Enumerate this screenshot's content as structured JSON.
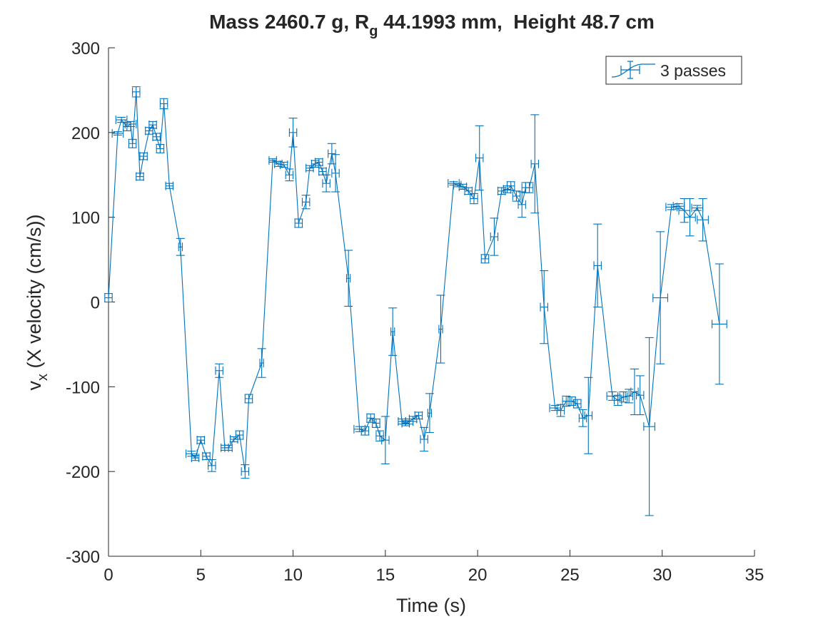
{
  "chart_data": {
    "type": "line",
    "title": "Mass 2460.7 g, R",
    "title_sub": "g",
    "title_rest": " 44.1993 mm,  Height 48.7 cm",
    "xlabel": "Time (s)",
    "ylabel": "v",
    "ylabel_sub": "x",
    "ylabel_rest": " (X velocity (cm/s))",
    "xlim": [
      0,
      35
    ],
    "ylim": [
      -300,
      300
    ],
    "xticks": [
      0,
      5,
      10,
      15,
      20,
      25,
      30,
      35
    ],
    "xtick_labels": [
      "0",
      "5",
      "10",
      "15",
      "20",
      "25",
      "30",
      "35"
    ],
    "yticks": [
      -300,
      -200,
      -100,
      0,
      100,
      200,
      300
    ],
    "ytick_labels": [
      "-300",
      "-200",
      "-100",
      "0",
      "100",
      "200",
      "300"
    ],
    "grid": false,
    "legend": {
      "position": "top-right",
      "entries": [
        "3 passes"
      ]
    },
    "series": [
      {
        "name": "3 passes",
        "color": "#0072BD",
        "points": [
          {
            "x": 0.0,
            "y": 5,
            "yerr": 5,
            "xerr": 0.2
          },
          {
            "x": 0.5,
            "y": 199,
            "yerr": 2,
            "xerr": 0.3
          },
          {
            "x": 0.7,
            "y": 215,
            "yerr": 3,
            "xerr": 0.3
          },
          {
            "x": 1.0,
            "y": 207,
            "yerr": 5,
            "xerr": 0.2
          },
          {
            "x": 1.2,
            "y": 210,
            "yerr": 3,
            "xerr": 0.3
          },
          {
            "x": 1.3,
            "y": 187,
            "yerr": 5,
            "xerr": 0.2
          },
          {
            "x": 1.5,
            "y": 248,
            "yerr": 6,
            "xerr": 0.2
          },
          {
            "x": 1.7,
            "y": 148,
            "yerr": 4,
            "xerr": 0.2
          },
          {
            "x": 1.9,
            "y": 172,
            "yerr": 4,
            "xerr": 0.2
          },
          {
            "x": 2.2,
            "y": 202,
            "yerr": 4,
            "xerr": 0.2
          },
          {
            "x": 2.4,
            "y": 209,
            "yerr": 4,
            "xerr": 0.2
          },
          {
            "x": 2.6,
            "y": 195,
            "yerr": 4,
            "xerr": 0.2
          },
          {
            "x": 2.8,
            "y": 181,
            "yerr": 5,
            "xerr": 0.2
          },
          {
            "x": 3.0,
            "y": 234,
            "yerr": 6,
            "xerr": 0.2
          },
          {
            "x": 3.3,
            "y": 137,
            "yerr": 3,
            "xerr": 0.2
          },
          {
            "x": 3.9,
            "y": 65,
            "yerr": 10,
            "xerr": 0.1
          },
          {
            "x": 4.5,
            "y": -179,
            "yerr": 3,
            "xerr": 0.3
          },
          {
            "x": 4.7,
            "y": -184,
            "yerr": 3,
            "xerr": 0.2
          },
          {
            "x": 5.0,
            "y": -163,
            "yerr": 4,
            "xerr": 0.2
          },
          {
            "x": 5.3,
            "y": -182,
            "yerr": 4,
            "xerr": 0.2
          },
          {
            "x": 5.6,
            "y": -193,
            "yerr": 7,
            "xerr": 0.2
          },
          {
            "x": 6.0,
            "y": -81,
            "yerr": 8,
            "xerr": 0.2
          },
          {
            "x": 6.3,
            "y": -172,
            "yerr": 3,
            "xerr": 0.2
          },
          {
            "x": 6.5,
            "y": -172,
            "yerr": 3,
            "xerr": 0.2
          },
          {
            "x": 6.8,
            "y": -162,
            "yerr": 3,
            "xerr": 0.2
          },
          {
            "x": 7.1,
            "y": -157,
            "yerr": 5,
            "xerr": 0.2
          },
          {
            "x": 7.4,
            "y": -200,
            "yerr": 8,
            "xerr": 0.2
          },
          {
            "x": 7.6,
            "y": -114,
            "yerr": 5,
            "xerr": 0.2
          },
          {
            "x": 8.3,
            "y": -72,
            "yerr": 17,
            "xerr": 0.1
          },
          {
            "x": 8.9,
            "y": 167,
            "yerr": 2,
            "xerr": 0.2
          },
          {
            "x": 9.2,
            "y": 163,
            "yerr": 3,
            "xerr": 0.2
          },
          {
            "x": 9.5,
            "y": 162,
            "yerr": 3,
            "xerr": 0.2
          },
          {
            "x": 9.8,
            "y": 150,
            "yerr": 7,
            "xerr": 0.2
          },
          {
            "x": 10.0,
            "y": 200,
            "yerr": 17,
            "xerr": 0.2
          },
          {
            "x": 10.3,
            "y": 93,
            "yerr": 5,
            "xerr": 0.2
          },
          {
            "x": 10.7,
            "y": 118,
            "yerr": 8,
            "xerr": 0.2
          },
          {
            "x": 10.9,
            "y": 158,
            "yerr": 3,
            "xerr": 0.2
          },
          {
            "x": 11.2,
            "y": 163,
            "yerr": 4,
            "xerr": 0.2
          },
          {
            "x": 11.4,
            "y": 165,
            "yerr": 4,
            "xerr": 0.2
          },
          {
            "x": 11.6,
            "y": 154,
            "yerr": 4,
            "xerr": 0.2
          },
          {
            "x": 11.8,
            "y": 140,
            "yerr": 10,
            "xerr": 0.2
          },
          {
            "x": 12.1,
            "y": 175,
            "yerr": 12,
            "xerr": 0.2
          },
          {
            "x": 12.3,
            "y": 152,
            "yerr": 22,
            "xerr": 0.2
          },
          {
            "x": 13.0,
            "y": 28,
            "yerr": 33,
            "xerr": 0.1
          },
          {
            "x": 13.6,
            "y": -150,
            "yerr": 3,
            "xerr": 0.3
          },
          {
            "x": 13.9,
            "y": -152,
            "yerr": 5,
            "xerr": 0.2
          },
          {
            "x": 14.2,
            "y": -137,
            "yerr": 5,
            "xerr": 0.2
          },
          {
            "x": 14.5,
            "y": -143,
            "yerr": 5,
            "xerr": 0.2
          },
          {
            "x": 14.7,
            "y": -158,
            "yerr": 6,
            "xerr": 0.2
          },
          {
            "x": 15.0,
            "y": -163,
            "yerr": 28,
            "xerr": 0.2
          },
          {
            "x": 15.4,
            "y": -35,
            "yerr": 28,
            "xerr": 0.1
          },
          {
            "x": 15.9,
            "y": -141,
            "yerr": 3,
            "xerr": 0.2
          },
          {
            "x": 16.1,
            "y": -143,
            "yerr": 3,
            "xerr": 0.2
          },
          {
            "x": 16.3,
            "y": -141,
            "yerr": 3,
            "xerr": 0.2
          },
          {
            "x": 16.5,
            "y": -138,
            "yerr": 3,
            "xerr": 0.2
          },
          {
            "x": 16.8,
            "y": -134,
            "yerr": 4,
            "xerr": 0.2
          },
          {
            "x": 17.1,
            "y": -162,
            "yerr": 14,
            "xerr": 0.2
          },
          {
            "x": 17.4,
            "y": -131,
            "yerr": 23,
            "xerr": 0.1
          },
          {
            "x": 18.0,
            "y": -32,
            "yerr": 40,
            "xerr": 0.1
          },
          {
            "x": 18.7,
            "y": 140,
            "yerr": 2,
            "xerr": 0.3
          },
          {
            "x": 18.9,
            "y": 138,
            "yerr": 2,
            "xerr": 0.2
          },
          {
            "x": 19.2,
            "y": 136,
            "yerr": 3,
            "xerr": 0.2
          },
          {
            "x": 19.5,
            "y": 131,
            "yerr": 4,
            "xerr": 0.2
          },
          {
            "x": 19.8,
            "y": 122,
            "yerr": 6,
            "xerr": 0.2
          },
          {
            "x": 20.1,
            "y": 170,
            "yerr": 38,
            "xerr": 0.2
          },
          {
            "x": 20.4,
            "y": 51,
            "yerr": 5,
            "xerr": 0.2
          },
          {
            "x": 20.9,
            "y": 77,
            "yerr": 22,
            "xerr": 0.2
          },
          {
            "x": 21.3,
            "y": 131,
            "yerr": 4,
            "xerr": 0.2
          },
          {
            "x": 21.6,
            "y": 133,
            "yerr": 4,
            "xerr": 0.2
          },
          {
            "x": 21.8,
            "y": 137,
            "yerr": 5,
            "xerr": 0.2
          },
          {
            "x": 22.1,
            "y": 125,
            "yerr": 6,
            "xerr": 0.2
          },
          {
            "x": 22.4,
            "y": 115,
            "yerr": 15,
            "xerr": 0.2
          },
          {
            "x": 22.6,
            "y": 135,
            "yerr": 6,
            "xerr": 0.2
          },
          {
            "x": 22.8,
            "y": 135,
            "yerr": 6,
            "xerr": 0.2
          },
          {
            "x": 23.1,
            "y": 163,
            "yerr": 58,
            "xerr": 0.2
          },
          {
            "x": 23.6,
            "y": -6,
            "yerr": 43,
            "xerr": 0.2
          },
          {
            "x": 24.2,
            "y": -125,
            "yerr": 3,
            "xerr": 0.3
          },
          {
            "x": 24.5,
            "y": -128,
            "yerr": 7,
            "xerr": 0.2
          },
          {
            "x": 24.8,
            "y": -117,
            "yerr": 6,
            "xerr": 0.2
          },
          {
            "x": 25.1,
            "y": -117,
            "yerr": 5,
            "xerr": 0.2
          },
          {
            "x": 25.4,
            "y": -120,
            "yerr": 5,
            "xerr": 0.2
          },
          {
            "x": 25.7,
            "y": -137,
            "yerr": 10,
            "xerr": 0.2
          },
          {
            "x": 26.0,
            "y": -134,
            "yerr": 45,
            "xerr": 0.2
          },
          {
            "x": 26.5,
            "y": 43,
            "yerr": 49,
            "xerr": 0.2
          },
          {
            "x": 27.3,
            "y": -111,
            "yerr": 5,
            "xerr": 0.3
          },
          {
            "x": 27.6,
            "y": -116,
            "yerr": 6,
            "xerr": 0.2
          },
          {
            "x": 27.9,
            "y": -112,
            "yerr": 6,
            "xerr": 0.2
          },
          {
            "x": 28.2,
            "y": -111,
            "yerr": 8,
            "xerr": 0.2
          },
          {
            "x": 28.5,
            "y": -106,
            "yerr": 27,
            "xerr": 0.2
          },
          {
            "x": 28.8,
            "y": -110,
            "yerr": 23,
            "xerr": 0.2
          },
          {
            "x": 29.3,
            "y": -147,
            "yerr": 105,
            "xerr": 0.3
          },
          {
            "x": 29.9,
            "y": 5,
            "yerr": 78,
            "xerr": 0.4
          },
          {
            "x": 30.5,
            "y": 112,
            "yerr": 3,
            "xerr": 0.3
          },
          {
            "x": 30.9,
            "y": 113,
            "yerr": 3,
            "xerr": 0.3
          },
          {
            "x": 31.2,
            "y": 108,
            "yerr": 14,
            "xerr": 0.3
          },
          {
            "x": 31.5,
            "y": 100,
            "yerr": 22,
            "xerr": 0.3
          },
          {
            "x": 31.9,
            "y": 111,
            "yerr": 3,
            "xerr": 0.3
          },
          {
            "x": 32.2,
            "y": 97,
            "yerr": 25,
            "xerr": 0.3
          },
          {
            "x": 33.1,
            "y": -26,
            "yerr": 71,
            "xerr": 0.4
          }
        ]
      }
    ]
  }
}
